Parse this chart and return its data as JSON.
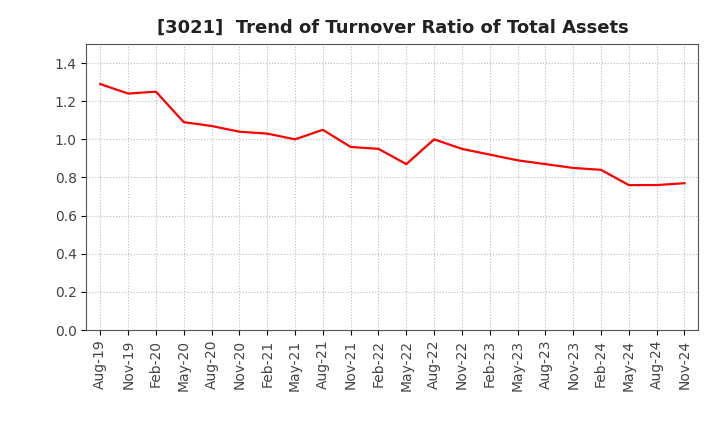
{
  "title": "[3021]  Trend of Turnover Ratio of Total Assets",
  "x_labels": [
    "Aug-19",
    "Nov-19",
    "Feb-20",
    "May-20",
    "Aug-20",
    "Nov-20",
    "Feb-21",
    "May-21",
    "Aug-21",
    "Nov-21",
    "Feb-22",
    "May-22",
    "Aug-22",
    "Nov-22",
    "Feb-23",
    "May-23",
    "Aug-23",
    "Nov-23",
    "Feb-24",
    "May-24",
    "Aug-24",
    "Nov-24"
  ],
  "y_values": [
    1.29,
    1.24,
    1.25,
    1.09,
    1.07,
    1.04,
    1.03,
    1.0,
    1.05,
    0.96,
    0.95,
    0.87,
    1.0,
    0.95,
    0.92,
    0.89,
    0.87,
    0.85,
    0.84,
    0.76,
    0.76,
    0.77
  ],
  "line_color": "#ff0000",
  "line_width": 1.6,
  "ylim": [
    0.0,
    1.5
  ],
  "yticks": [
    0.0,
    0.2,
    0.4,
    0.6,
    0.8,
    1.0,
    1.2,
    1.4
  ],
  "grid_color": "#bbbbbb",
  "background_color": "#ffffff",
  "title_fontsize": 13,
  "tick_fontsize": 10
}
